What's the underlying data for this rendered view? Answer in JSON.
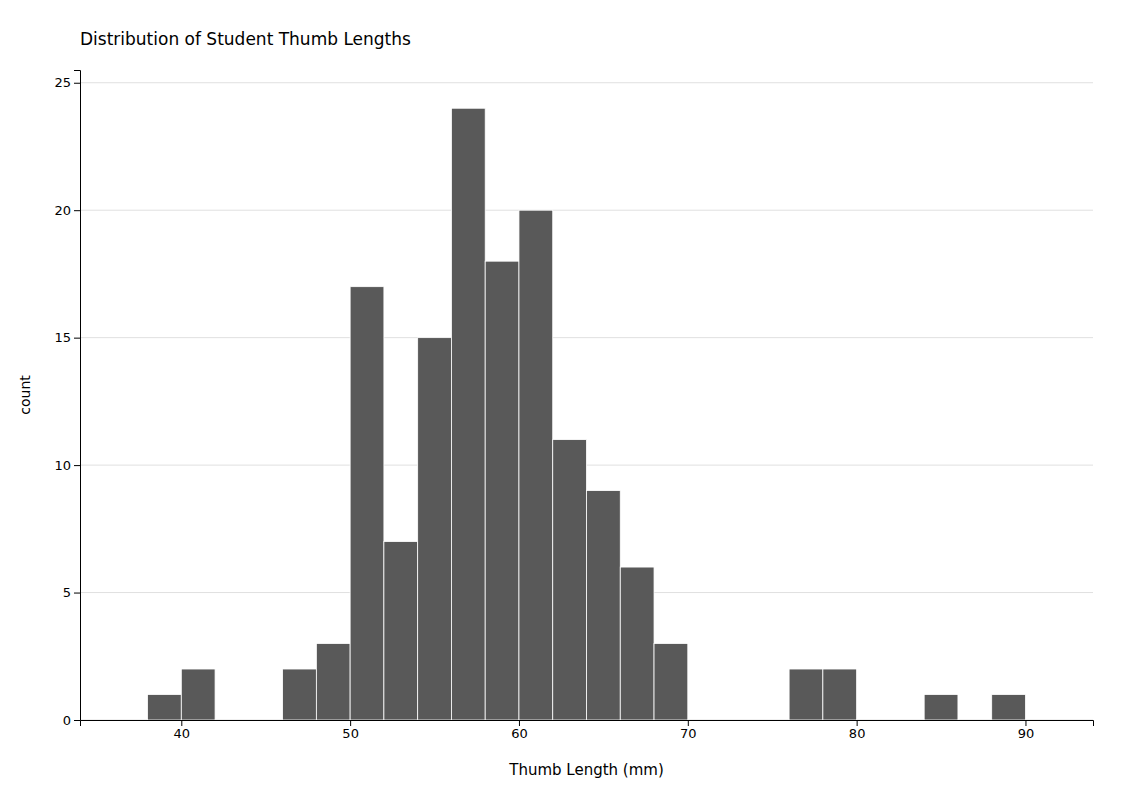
{
  "chart_data": {
    "type": "histogram",
    "title": "Distribution of Student Thumb Lengths",
    "xlabel": "Thumb Length (mm)",
    "ylabel": "count",
    "color": "#595959",
    "bins": [
      38,
      40,
      42,
      46,
      48,
      50,
      52,
      54,
      56,
      58,
      60,
      62,
      64,
      66,
      68,
      70,
      72,
      74,
      76,
      78,
      80,
      84,
      86,
      88,
      90
    ],
    "values": [
      1,
      2,
      0,
      2,
      3,
      17,
      7,
      15,
      24,
      18,
      20,
      11,
      9,
      6,
      3,
      0,
      0,
      0,
      2,
      2,
      0,
      1,
      0,
      1
    ],
    "xlim": [
      34,
      94
    ],
    "ylim": [
      0,
      25.5
    ],
    "xticks": [
      40,
      50,
      60,
      70,
      80,
      90
    ],
    "yticks": [
      0,
      5,
      10,
      15,
      20,
      25
    ],
    "grid": true
  }
}
